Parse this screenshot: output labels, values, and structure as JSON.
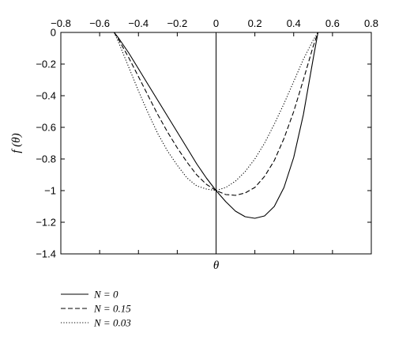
{
  "chart_data": {
    "type": "line",
    "title": "",
    "xlabel": "θ",
    "ylabel": "f (θ)",
    "xlim": [
      -0.8,
      0.8
    ],
    "ylim": [
      -1.4,
      0
    ],
    "x_ticks": [
      -0.8,
      -0.6,
      -0.4,
      -0.2,
      0,
      0.2,
      0.4,
      0.6,
      0.8
    ],
    "x_tick_labels": [
      "−0.8",
      "−0.6",
      "−0.4",
      "−0.2",
      "0",
      "0.2",
      "0.4",
      "0.6",
      "0.8"
    ],
    "y_ticks": [
      0,
      -0.2,
      -0.4,
      -0.6,
      -0.8,
      -1,
      -1.2,
      -1.4
    ],
    "y_tick_labels": [
      "0",
      "−0.2",
      "−0.4",
      "−0.6",
      "−0.8",
      "−1",
      "−1.2",
      "−1.4"
    ],
    "x_tick_position": "top",
    "grid": false,
    "legend_position": "below-left",
    "series": [
      {
        "name": "N = 0",
        "style": "solid",
        "x": [
          -0.525,
          -0.5,
          -0.45,
          -0.4,
          -0.35,
          -0.3,
          -0.25,
          -0.2,
          -0.15,
          -0.1,
          -0.05,
          0,
          0.05,
          0.1,
          0.15,
          0.2,
          0.25,
          0.3,
          0.35,
          0.4,
          0.45,
          0.5,
          0.525
        ],
        "y": [
          0,
          -0.04,
          -0.13,
          -0.23,
          -0.33,
          -0.43,
          -0.53,
          -0.63,
          -0.73,
          -0.83,
          -0.92,
          -1.0,
          -1.07,
          -1.13,
          -1.165,
          -1.175,
          -1.16,
          -1.1,
          -0.98,
          -0.79,
          -0.52,
          -0.17,
          0
        ]
      },
      {
        "name": "N = 0.15",
        "style": "dashed",
        "x": [
          -0.525,
          -0.5,
          -0.45,
          -0.4,
          -0.35,
          -0.3,
          -0.25,
          -0.2,
          -0.15,
          -0.1,
          -0.05,
          0,
          0.05,
          0.1,
          0.15,
          0.2,
          0.25,
          0.3,
          0.35,
          0.4,
          0.45,
          0.5,
          0.525
        ],
        "y": [
          0,
          -0.05,
          -0.16,
          -0.28,
          -0.4,
          -0.52,
          -0.63,
          -0.73,
          -0.82,
          -0.9,
          -0.96,
          -1.0,
          -1.025,
          -1.03,
          -1.015,
          -0.98,
          -0.91,
          -0.81,
          -0.67,
          -0.5,
          -0.3,
          -0.09,
          0
        ]
      },
      {
        "name": "N = 0.03",
        "style": "dotted",
        "x": [
          -0.525,
          -0.5,
          -0.45,
          -0.4,
          -0.35,
          -0.3,
          -0.25,
          -0.2,
          -0.15,
          -0.1,
          -0.05,
          0,
          0.05,
          0.1,
          0.15,
          0.2,
          0.25,
          0.3,
          0.35,
          0.4,
          0.45,
          0.5,
          0.525
        ],
        "y": [
          0,
          -0.07,
          -0.22,
          -0.37,
          -0.51,
          -0.64,
          -0.75,
          -0.84,
          -0.92,
          -0.97,
          -0.99,
          -1.0,
          -0.98,
          -0.94,
          -0.88,
          -0.8,
          -0.7,
          -0.58,
          -0.45,
          -0.31,
          -0.17,
          -0.05,
          0
        ]
      }
    ]
  }
}
